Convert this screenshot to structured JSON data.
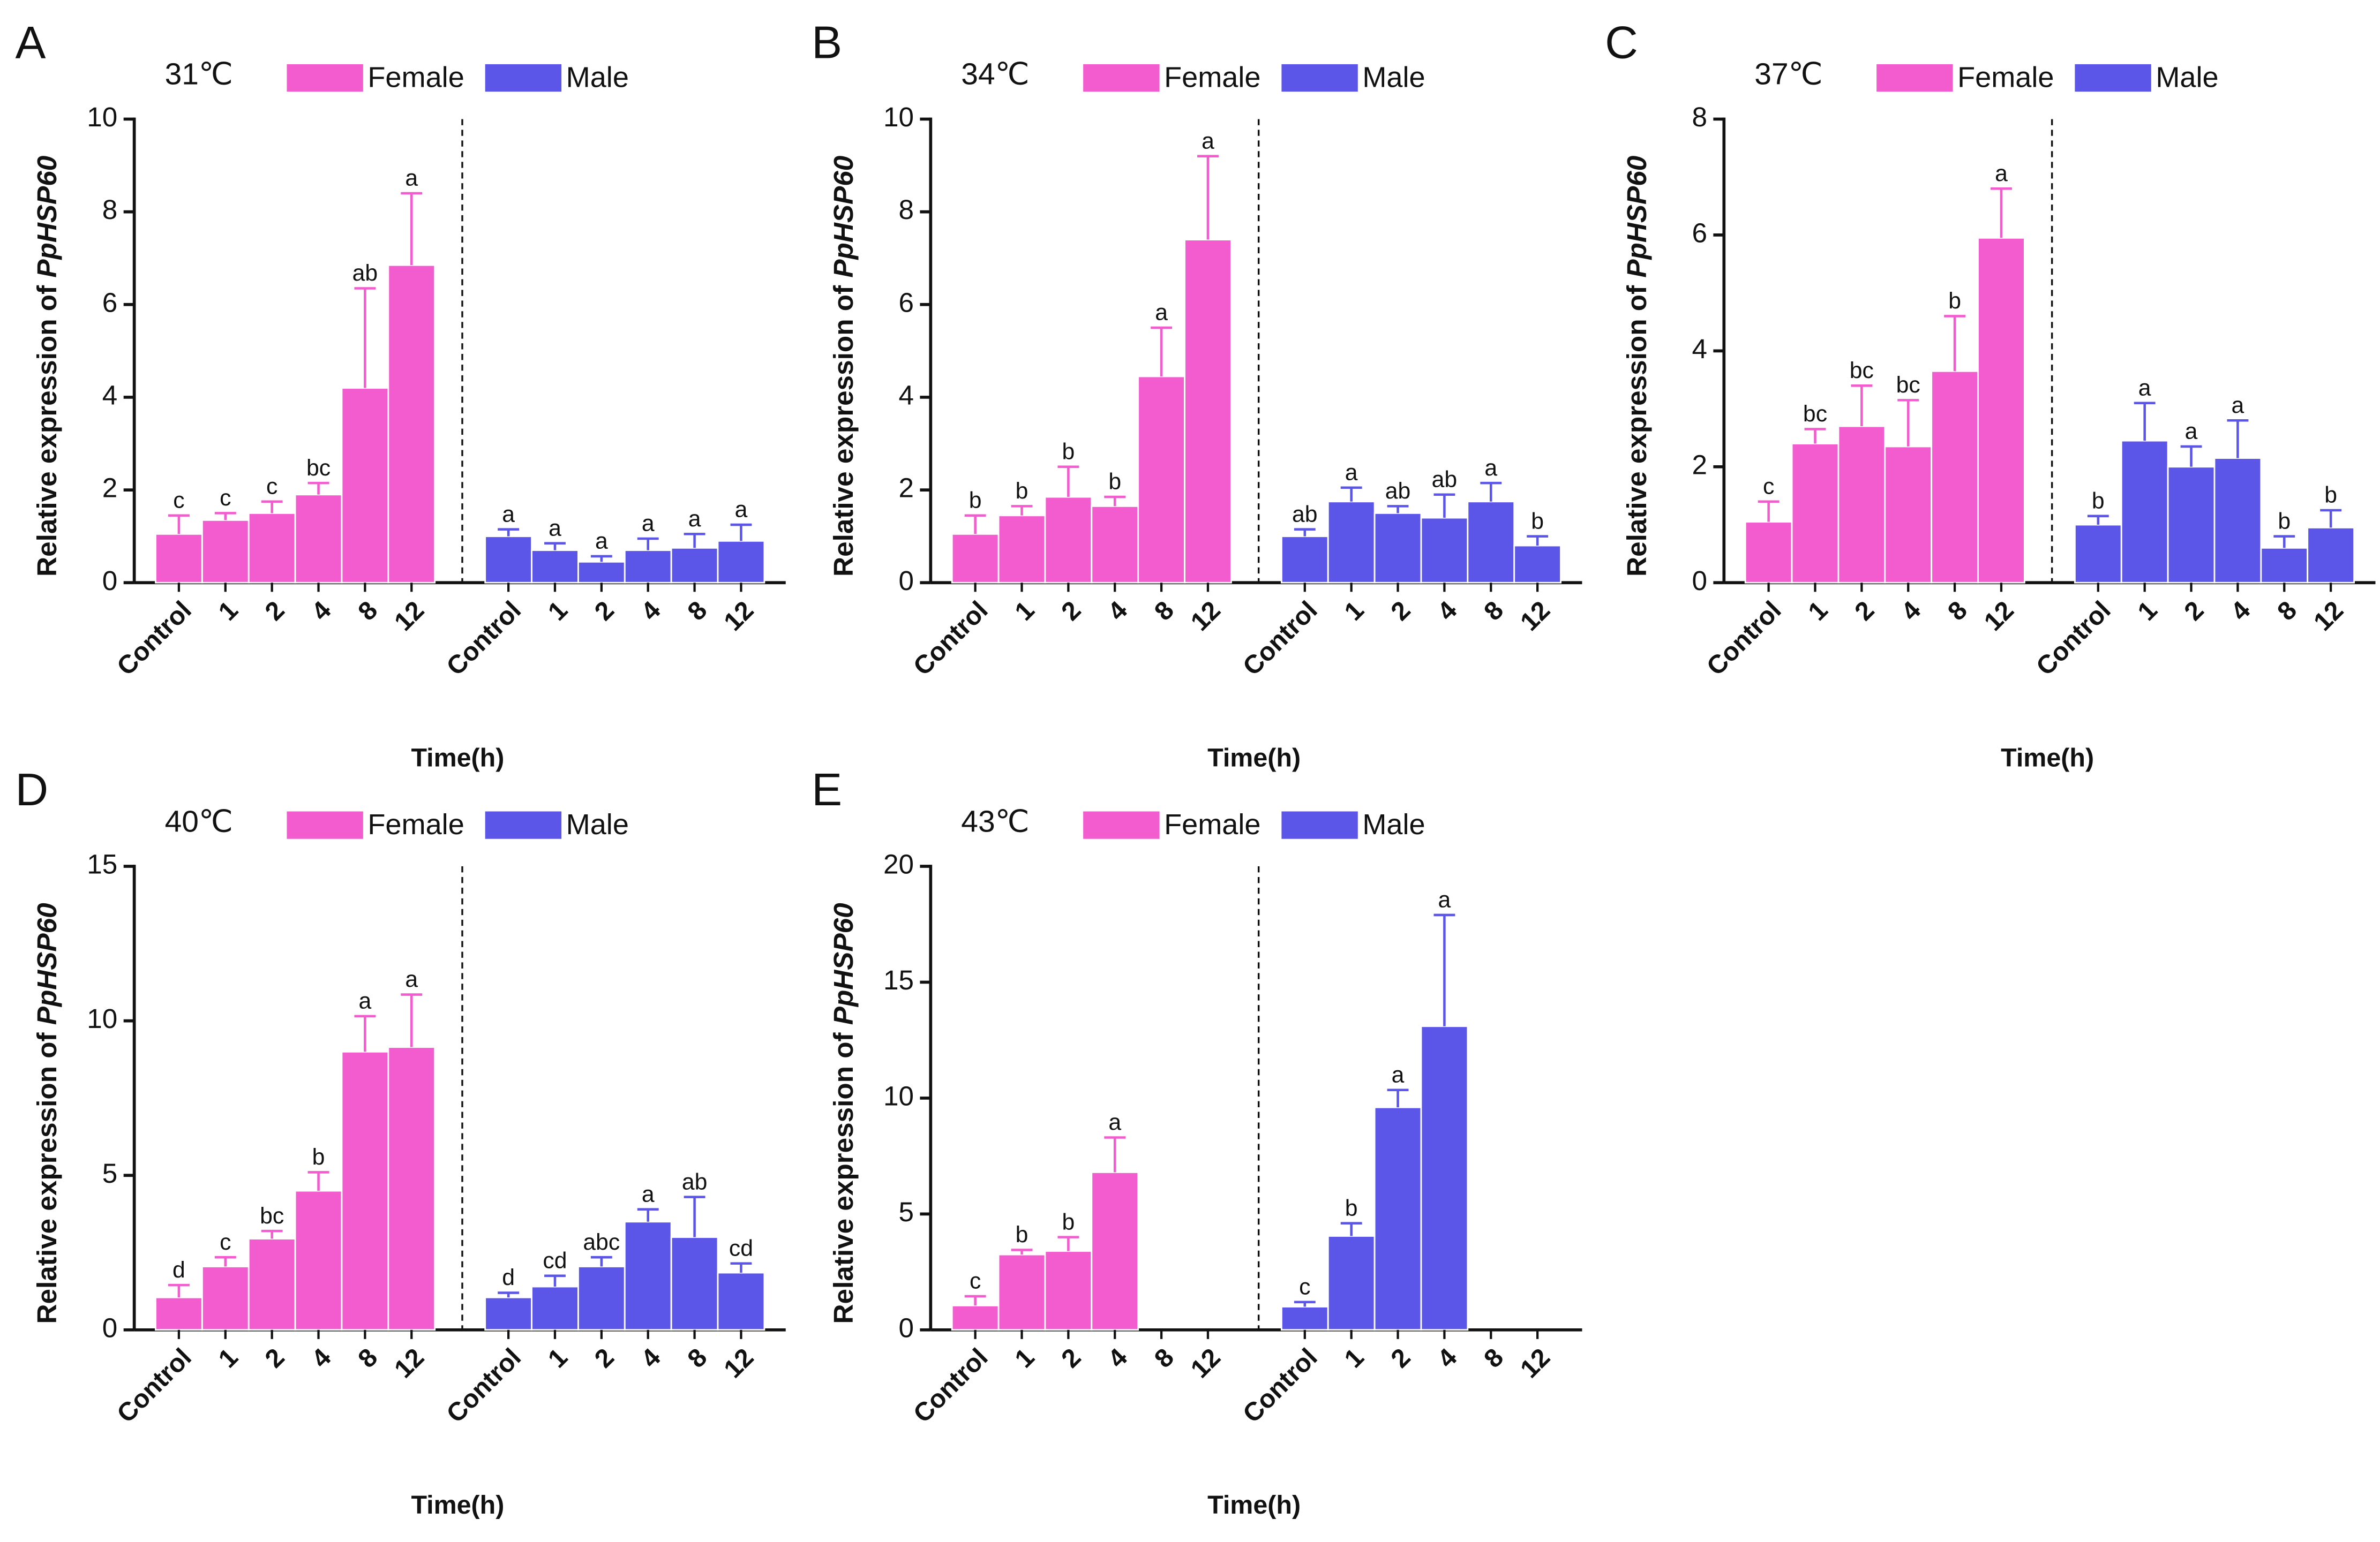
{
  "chart_data": [
    {
      "type": "bar",
      "panel": "A",
      "title": "31℃",
      "ylabel": "Relative expression of",
      "ylabel_gene": "PpHSP60",
      "xlabel": "Time(h)",
      "categories": [
        "Control",
        "1",
        "2",
        "4",
        "8",
        "12"
      ],
      "ylim": [
        0,
        10
      ],
      "yticks": [
        0,
        2,
        4,
        6,
        8,
        10
      ],
      "series": [
        {
          "name": "Female",
          "color": "#f35ccf",
          "values": [
            1.05,
            1.35,
            1.5,
            1.9,
            4.2,
            6.85
          ],
          "errors": [
            0.4,
            0.15,
            0.25,
            0.25,
            2.15,
            1.55
          ],
          "letters": [
            "c",
            "c",
            "c",
            "bc",
            "ab",
            "a"
          ]
        },
        {
          "name": "Male",
          "color": "#5b55e8",
          "values": [
            1.0,
            0.7,
            0.45,
            0.7,
            0.75,
            0.9
          ],
          "errors": [
            0.15,
            0.15,
            0.12,
            0.25,
            0.3,
            0.35
          ],
          "letters": [
            "a",
            "a",
            "a",
            "a",
            "a",
            "a"
          ]
        }
      ]
    },
    {
      "type": "bar",
      "panel": "B",
      "title": "34℃",
      "ylabel": "Relative expression of",
      "ylabel_gene": "PpHSP60",
      "xlabel": "Time(h)",
      "categories": [
        "Control",
        "1",
        "2",
        "4",
        "8",
        "12"
      ],
      "ylim": [
        0,
        10
      ],
      "yticks": [
        0,
        2,
        4,
        6,
        8,
        10
      ],
      "series": [
        {
          "name": "Female",
          "color": "#f35ccf",
          "values": [
            1.05,
            1.45,
            1.85,
            1.65,
            4.45,
            7.4
          ],
          "errors": [
            0.4,
            0.2,
            0.65,
            0.2,
            1.05,
            1.8
          ],
          "letters": [
            "b",
            "b",
            "b",
            "b",
            "a",
            "a"
          ]
        },
        {
          "name": "Male",
          "color": "#5b55e8",
          "values": [
            1.0,
            1.75,
            1.5,
            1.4,
            1.75,
            0.8
          ],
          "errors": [
            0.15,
            0.3,
            0.15,
            0.5,
            0.4,
            0.2
          ],
          "letters": [
            "ab",
            "a",
            "ab",
            "ab",
            "a",
            "b"
          ]
        }
      ]
    },
    {
      "type": "bar",
      "panel": "C",
      "title": "37℃",
      "ylabel": "Relative expression of",
      "ylabel_gene": "PpHSP60",
      "xlabel": "Time(h)",
      "categories": [
        "Control",
        "1",
        "2",
        "4",
        "8",
        "12"
      ],
      "ylim": [
        0,
        8
      ],
      "yticks": [
        0,
        2,
        4,
        6,
        8
      ],
      "series": [
        {
          "name": "Female",
          "color": "#f35ccf",
          "values": [
            1.05,
            2.4,
            2.7,
            2.35,
            3.65,
            5.95
          ],
          "errors": [
            0.35,
            0.25,
            0.7,
            0.8,
            0.95,
            0.85
          ],
          "letters": [
            "c",
            "bc",
            "bc",
            "bc",
            "b",
            "a"
          ]
        },
        {
          "name": "Male",
          "color": "#5b55e8",
          "values": [
            1.0,
            2.45,
            2.0,
            2.15,
            0.6,
            0.95
          ],
          "errors": [
            0.15,
            0.65,
            0.35,
            0.65,
            0.2,
            0.3
          ],
          "letters": [
            "b",
            "a",
            "a",
            "a",
            "b",
            "b"
          ]
        }
      ]
    },
    {
      "type": "bar",
      "panel": "D",
      "title": "40℃",
      "ylabel": "Relative expression of",
      "ylabel_gene": "PpHSP60",
      "xlabel": "Time(h)",
      "categories": [
        "Control",
        "1",
        "2",
        "4",
        "8",
        "12"
      ],
      "ylim": [
        0,
        15
      ],
      "yticks": [
        0,
        5,
        10,
        15
      ],
      "series": [
        {
          "name": "Female",
          "color": "#f35ccf",
          "values": [
            1.05,
            2.05,
            2.95,
            4.5,
            9.0,
            9.15
          ],
          "errors": [
            0.4,
            0.3,
            0.25,
            0.6,
            1.15,
            1.7
          ],
          "letters": [
            "d",
            "c",
            "bc",
            "b",
            "a",
            "a"
          ]
        },
        {
          "name": "Male",
          "color": "#5b55e8",
          "values": [
            1.05,
            1.4,
            2.05,
            3.5,
            3.0,
            1.85
          ],
          "errors": [
            0.15,
            0.35,
            0.3,
            0.4,
            1.3,
            0.3
          ],
          "letters": [
            "d",
            "cd",
            "abc",
            "a",
            "ab",
            "cd"
          ]
        }
      ]
    },
    {
      "type": "bar",
      "panel": "E",
      "title": "43℃",
      "ylabel": "Relative expression of",
      "ylabel_gene": "PpHSP60",
      "xlabel": "Time(h)",
      "categories": [
        "Control",
        "1",
        "2",
        "4",
        "8",
        "12"
      ],
      "ylim": [
        0,
        20
      ],
      "yticks": [
        0,
        5,
        10,
        15,
        20
      ],
      "series": [
        {
          "name": "Female",
          "color": "#f35ccf",
          "values": [
            1.05,
            3.25,
            3.4,
            6.8,
            0,
            0
          ],
          "errors": [
            0.4,
            0.2,
            0.6,
            1.5,
            null,
            null
          ],
          "letters": [
            "c",
            "b",
            "b",
            "a",
            null,
            null
          ]
        },
        {
          "name": "Male",
          "color": "#5b55e8",
          "values": [
            1.0,
            4.05,
            9.6,
            13.1,
            0,
            0
          ],
          "errors": [
            0.2,
            0.55,
            0.75,
            4.8,
            null,
            null
          ],
          "letters": [
            "c",
            "b",
            "a",
            "a",
            null,
            null
          ]
        }
      ]
    }
  ]
}
